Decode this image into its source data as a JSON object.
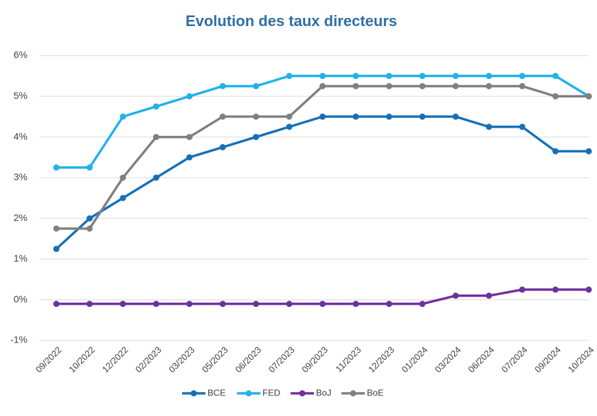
{
  "chart_data": {
    "type": "line",
    "title": "Evolution des taux directeurs",
    "categories": [
      "09/2022",
      "10/2022",
      "12/2022",
      "02/2023",
      "03/2023",
      "05/2023",
      "06/2023",
      "07/2023",
      "09/2023",
      "11/2023",
      "12/2023",
      "01/2024",
      "03/2024",
      "06/2024",
      "07/2024",
      "09/2024",
      "10/2024"
    ],
    "series": [
      {
        "name": "BCE",
        "color": "#1570b8",
        "values": [
          1.25,
          2,
          2.5,
          3,
          3.5,
          3.75,
          4,
          4.25,
          4.5,
          4.5,
          4.5,
          4.5,
          4.5,
          4.25,
          4.25,
          3.65,
          3.65
        ]
      },
      {
        "name": "FED",
        "color": "#1fb3ea",
        "values": [
          3.25,
          3.25,
          4.5,
          4.75,
          5,
          5.25,
          5.25,
          5.5,
          5.5,
          5.5,
          5.5,
          5.5,
          5.5,
          5.5,
          5.5,
          5.5,
          5
        ]
      },
      {
        "name": "BoJ",
        "color": "#7030a0",
        "values": [
          -0.1,
          -0.1,
          -0.1,
          -0.1,
          -0.1,
          -0.1,
          -0.1,
          -0.1,
          -0.1,
          -0.1,
          -0.1,
          -0.1,
          0.1,
          0.1,
          0.25,
          0.25,
          0.25
        ]
      },
      {
        "name": "BoE",
        "color": "#808080",
        "values": [
          1.75,
          1.75,
          3,
          4,
          4,
          4.5,
          4.5,
          4.5,
          5.25,
          5.25,
          5.25,
          5.25,
          5.25,
          5.25,
          5.25,
          5,
          5
        ]
      }
    ],
    "ylim": [
      -1,
      6
    ],
    "yticks": [
      {
        "value": -1,
        "label": "-1%"
      },
      {
        "value": 0,
        "label": "0%"
      },
      {
        "value": 1,
        "label": "1%"
      },
      {
        "value": 2,
        "label": "2%"
      },
      {
        "value": 3,
        "label": "3%"
      },
      {
        "value": 4,
        "label": "4%"
      },
      {
        "value": 5,
        "label": "5%"
      },
      {
        "value": 6,
        "label": "6%"
      }
    ],
    "grid": true,
    "legend": "bottom"
  }
}
